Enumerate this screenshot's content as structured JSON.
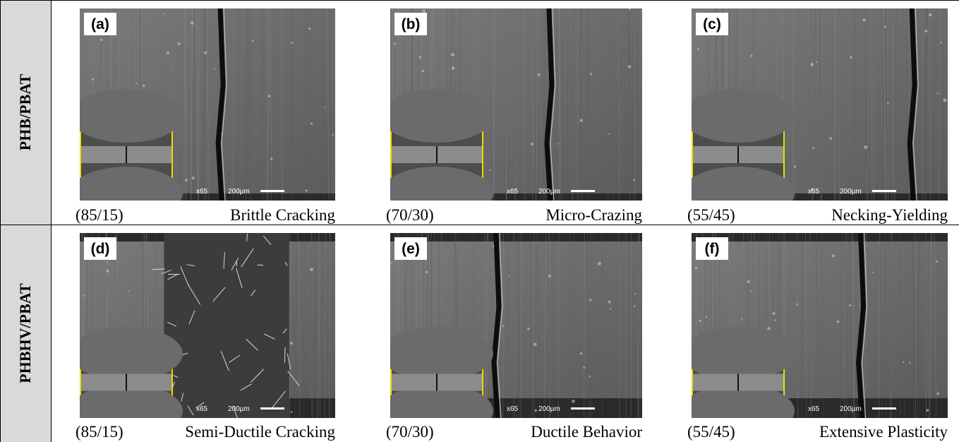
{
  "rows": [
    {
      "label": "PHB/PBAT",
      "panels": [
        {
          "tag": "(a)",
          "ratio": "(85/15)",
          "behavior": "Brittle Cracking",
          "magnification": "x65",
          "scale": "200µm"
        },
        {
          "tag": "(b)",
          "ratio": "(70/30)",
          "behavior": "Micro-Crazing",
          "magnification": "x65",
          "scale": "200µm"
        },
        {
          "tag": "(c)",
          "ratio": "(55/45)",
          "behavior": "Necking-Yielding",
          "magnification": "x65",
          "scale": "200µm"
        }
      ]
    },
    {
      "label": "PHBHV/PBAT",
      "panels": [
        {
          "tag": "(d)",
          "ratio": "(85/15)",
          "behavior": "Semi-Ductile Cracking",
          "magnification": "x65",
          "scale": "200µm"
        },
        {
          "tag": "(e)",
          "ratio": "(70/30)",
          "behavior": "Ductile Behavior",
          "magnification": "x65",
          "scale": "200µm"
        },
        {
          "tag": "(f)",
          "ratio": "(55/45)",
          "behavior": "Extensive Plasticity",
          "magnification": "x65",
          "scale": "200µm"
        }
      ]
    }
  ]
}
